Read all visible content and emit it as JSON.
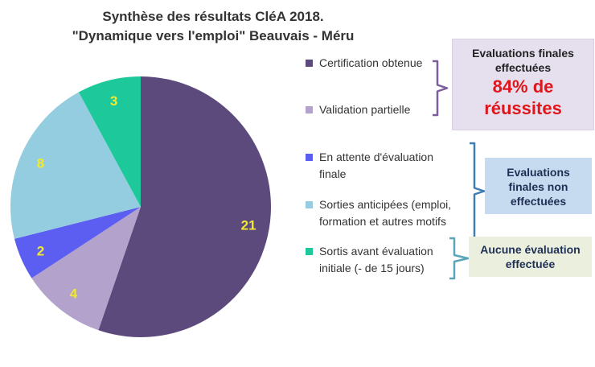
{
  "chart_data": {
    "type": "pie",
    "title_line1": "Synthèse des résultats CléA 2018.",
    "title_line2": "\"Dynamique vers l'emploi\" Beauvais - Méru",
    "slices": [
      {
        "label": "Certification obtenue",
        "value": 21,
        "color": "#5d4a7c"
      },
      {
        "label": "Validation partielle",
        "value": 4,
        "color": "#b3a2cc"
      },
      {
        "label": "En attente d'évaluation finale",
        "value": 2,
        "color": "#5b5ef0"
      },
      {
        "label": "Sorties anticipées (emploi, formation et autres motifs",
        "value": 8,
        "color": "#94cde0"
      },
      {
        "label": "Sortis avant évaluation initiale (- de 15 jours)",
        "value": 3,
        "color": "#1dc99a"
      }
    ],
    "data_label_color": "#f2e92e"
  },
  "legend": [
    {
      "line1": "Certification obtenue",
      "line2": ""
    },
    {
      "line1": "Validation partielle",
      "line2": ""
    },
    {
      "line1": "En attente d'évaluation",
      "line2": "finale"
    },
    {
      "line1": "Sorties anticipées (emploi,",
      "line2": "formation et autres motifs"
    },
    {
      "line1": "Sortis avant évaluation",
      "line2": "initiale (- de 15 jours)"
    }
  ],
  "callouts": {
    "box1_line1": "Evaluations finales",
    "box1_line2": "effectuées",
    "box1_highlight_line1": "84% de",
    "box1_highlight_line2": "réussites",
    "box2_line1": "Evaluations",
    "box2_line2": "finales non",
    "box2_line3": "effectuées",
    "box3_line1": "Aucune évaluation",
    "box3_line2": "effectuée"
  },
  "bracket_colors": {
    "purple": "#7b5e9a",
    "blue": "#3f7cb0",
    "teal": "#5aa6b8"
  }
}
